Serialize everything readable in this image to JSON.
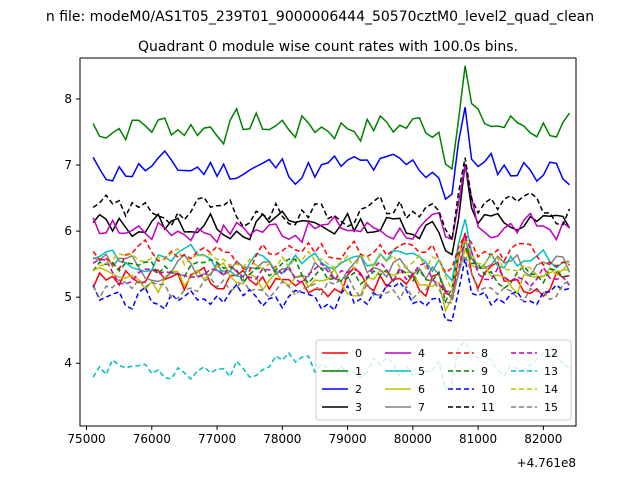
{
  "suptitle": "n file: modeM0/AS1T05_239T01_9000006444_50570cztM0_level2_quad_clean",
  "chart_data": {
    "type": "line",
    "title": "Quadrant 0 module wise count rates with 100.0s bins.",
    "xlabel": "",
    "ylabel": "",
    "x_offset_label": "+4.761e8",
    "xlim": [
      74900,
      82500
    ],
    "ylim": [
      3.05,
      8.62
    ],
    "xticks": [
      75000,
      76000,
      77000,
      78000,
      79000,
      80000,
      81000,
      82000
    ],
    "yticks": [
      4,
      5,
      6,
      7,
      8
    ],
    "x_start": 75100,
    "x_step": 100,
    "legend_position": "lower-right",
    "series": [
      {
        "name": "0",
        "color": "#ff0000",
        "dash": "solid",
        "base": 5.25,
        "amp": 0.35,
        "seed": 3
      },
      {
        "name": "1",
        "color": "#008000",
        "dash": "solid",
        "base": 7.6,
        "amp": 0.42,
        "seed": 7
      },
      {
        "name": "2",
        "color": "#0000ff",
        "dash": "solid",
        "base": 6.95,
        "amp": 0.38,
        "seed": 11
      },
      {
        "name": "3",
        "color": "#000000",
        "dash": "solid",
        "base": 6.1,
        "amp": 0.32,
        "seed": 13
      },
      {
        "name": "4",
        "color": "#bf00bf",
        "dash": "solid",
        "base": 6.05,
        "amp": 0.33,
        "seed": 17
      },
      {
        "name": "5",
        "color": "#00bfbf",
        "dash": "solid",
        "base": 5.55,
        "amp": 0.3,
        "seed": 19
      },
      {
        "name": "6",
        "color": "#bfbf00",
        "dash": "solid",
        "base": 5.25,
        "amp": 0.33,
        "seed": 23
      },
      {
        "name": "7",
        "color": "#808080",
        "dash": "solid",
        "base": 5.45,
        "amp": 0.3,
        "seed": 29
      },
      {
        "name": "8",
        "color": "#ff0000",
        "dash": "dashed",
        "base": 5.65,
        "amp": 0.3,
        "seed": 31
      },
      {
        "name": "9",
        "color": "#008000",
        "dash": "dashed",
        "base": 5.35,
        "amp": 0.3,
        "seed": 37
      },
      {
        "name": "10",
        "color": "#0000ff",
        "dash": "dashed",
        "base": 5.0,
        "amp": 0.35,
        "seed": 41
      },
      {
        "name": "11",
        "color": "#000000",
        "dash": "dashed",
        "base": 6.3,
        "amp": 0.35,
        "seed": 43
      },
      {
        "name": "12",
        "color": "#bf00bf",
        "dash": "dashed",
        "base": 5.35,
        "amp": 0.3,
        "seed": 47
      },
      {
        "name": "13",
        "color": "#00bfbf",
        "dash": "dashed",
        "base": 3.95,
        "amp": 0.3,
        "seed": 53
      },
      {
        "name": "14",
        "color": "#bfbf00",
        "dash": "dashed",
        "base": 5.55,
        "amp": 0.3,
        "seed": 59
      },
      {
        "name": "15",
        "color": "#808080",
        "dash": "dashed",
        "base": 5.1,
        "amp": 0.3,
        "seed": 61
      }
    ]
  }
}
